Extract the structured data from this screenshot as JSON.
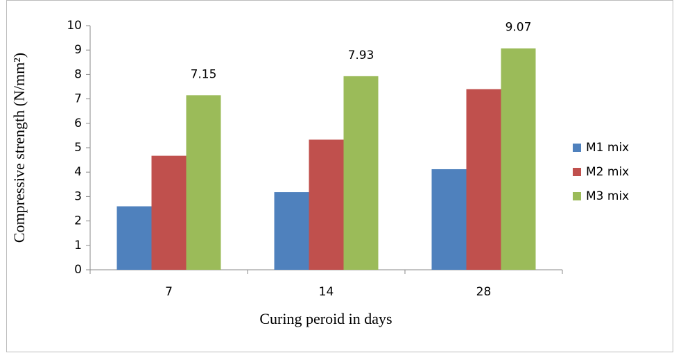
{
  "chart_data": {
    "type": "bar",
    "x_label": "Curing peroid in days",
    "y_label": "Compressive strength (N/mm²)",
    "categories": [
      "7",
      "14",
      "28"
    ],
    "series": [
      {
        "name": "M1 mix",
        "color": "#4f81bd",
        "values": [
          2.6,
          3.18,
          4.12
        ],
        "data_labels": false
      },
      {
        "name": "M2 mix",
        "color": "#c0504d",
        "values": [
          4.67,
          5.33,
          7.4
        ],
        "data_labels": false
      },
      {
        "name": "M3 mix",
        "color": "#9bbb59",
        "values": [
          7.15,
          7.93,
          9.07
        ],
        "data_labels": true
      }
    ],
    "ylim": [
      0,
      10
    ],
    "yticks": [
      0,
      1,
      2,
      3,
      4,
      5,
      6,
      7,
      8,
      9,
      10
    ],
    "grid": false,
    "legend": "right"
  }
}
